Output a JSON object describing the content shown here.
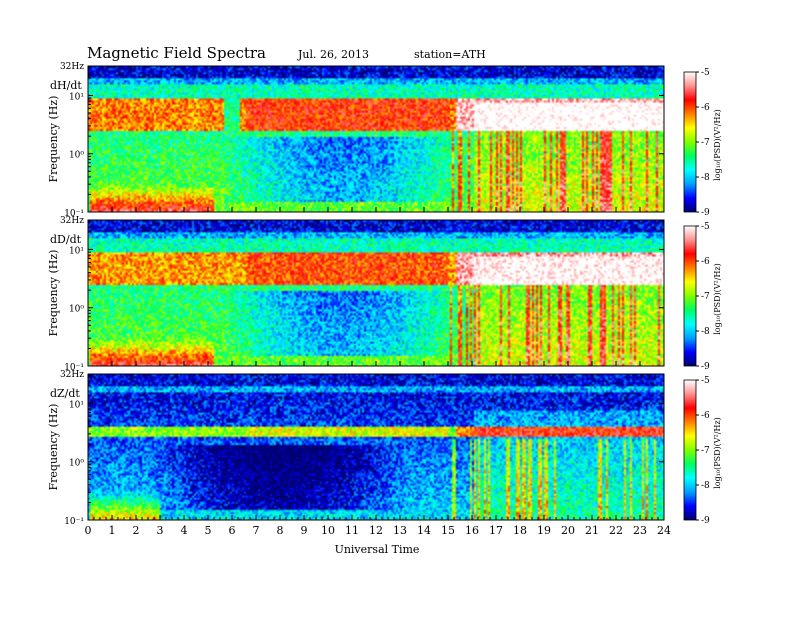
{
  "header": {
    "title": "Magnetic  Field  Spectra",
    "date": "Jul.  26, 2013",
    "station": "station=ATH"
  },
  "xaxis": {
    "label": "Universal Time",
    "ticks": [
      "0",
      "1",
      "2",
      "3",
      "4",
      "5",
      "6",
      "7",
      "8",
      "9",
      "10",
      "11",
      "12",
      "13",
      "14",
      "15",
      "16",
      "17",
      "18",
      "19",
      "20",
      "21",
      "22",
      "23",
      "24"
    ]
  },
  "colorbar": {
    "ticks": [
      "-5",
      "-6",
      "-7",
      "-8",
      "-9"
    ],
    "label": "log₁₀(PSD)(V²/Hz)",
    "stops": [
      "#000070",
      "#0000ff",
      "#00a0ff",
      "#00ffff",
      "#00ff60",
      "#80ff00",
      "#ffff00",
      "#ff8000",
      "#ff0000",
      "#ff9090",
      "#ffffff"
    ]
  },
  "chart_data": [
    {
      "type": "heatmap",
      "component": "dH/dt",
      "ylabel": "Frequency  (Hz)",
      "ytick_labels": [
        "32Hz",
        "10¹",
        "10⁰",
        "10⁻¹"
      ],
      "x_range_hours": [
        0,
        24
      ],
      "y_range_hz": [
        0.1,
        32
      ],
      "y_scale": "log",
      "color_range_log10_psd": [
        -9,
        -5
      ],
      "features": {
        "band_hz": [
          2.5,
          9
        ],
        "band_level_early": -6.2,
        "band_level_late": -5.2,
        "band_late_start_h": 15.3,
        "band_gap_h": [
          5.6,
          6.3
        ],
        "quiet_region_hours": [
          5.5,
          15.5
        ],
        "lowfreq_burst_hours": [
          0,
          5.2
        ]
      }
    },
    {
      "type": "heatmap",
      "component": "dD/dt",
      "ylabel": "Frequency  (Hz)",
      "ytick_labels": [
        "32Hz",
        "10¹",
        "10⁰",
        "10⁻¹"
      ],
      "x_range_hours": [
        0,
        24
      ],
      "y_range_hz": [
        0.1,
        32
      ],
      "y_scale": "log",
      "color_range_log10_psd": [
        -9,
        -5
      ],
      "features": {
        "band_hz": [
          2.5,
          9
        ],
        "band_level_early": -6.3,
        "band_level_late": -5.3,
        "band_late_start_h": 15.3,
        "quiet_region_hours": [
          5.5,
          15.5
        ],
        "lowfreq_burst_hours": [
          0,
          5.2
        ]
      }
    },
    {
      "type": "heatmap",
      "component": "dZ/dt",
      "ylabel": "Frequency  (Hz)",
      "ytick_labels": [
        "32Hz",
        "10¹",
        "10⁰",
        "10⁻¹"
      ],
      "x_range_hours": [
        0,
        24
      ],
      "y_range_hz": [
        0.1,
        32
      ],
      "y_scale": "log",
      "color_range_log10_psd": [
        -9,
        -5
      ],
      "features": {
        "band_hz": [
          2.8,
          4.0
        ],
        "band_level_early": -7.0,
        "band_level_late": -6.2,
        "band_late_start_h": 15.3,
        "quiet_region_hours": [
          2.5,
          13.5
        ],
        "lowfreq_burst_hours": [
          0,
          3
        ]
      }
    }
  ]
}
